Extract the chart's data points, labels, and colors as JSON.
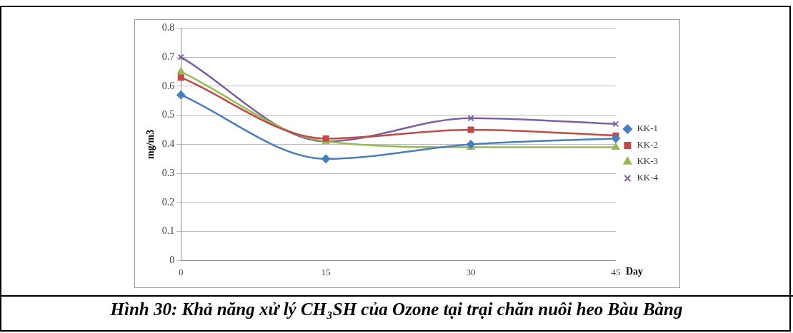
{
  "chart_data": {
    "type": "line",
    "title": "Hình 30: Khả năng xử lý CH₃SH của Ozone tại trại chăn nuôi heo Bàu Bàng",
    "xlabel": "Day",
    "ylabel": "mg/m3",
    "categories": [
      "0",
      "15",
      "30",
      "45"
    ],
    "series": [
      {
        "name": "KK-1",
        "color": "#4a7ebb",
        "marker": "diamond",
        "values": [
          0.57,
          0.35,
          0.4,
          0.42
        ]
      },
      {
        "name": "KK-2",
        "color": "#be4b48",
        "marker": "square",
        "values": [
          0.63,
          0.42,
          0.45,
          0.43
        ]
      },
      {
        "name": "KK-3",
        "color": "#98b954",
        "marker": "triangle",
        "values": [
          0.65,
          0.41,
          0.39,
          0.39
        ]
      },
      {
        "name": "KK-4",
        "color": "#7d60a0",
        "marker": "cross",
        "values": [
          0.7,
          0.41,
          0.49,
          0.47
        ]
      }
    ],
    "ylim": [
      0,
      0.8
    ],
    "yticks": [
      0,
      0.1,
      0.2,
      0.3,
      0.4,
      0.5,
      0.6,
      0.7,
      0.8
    ],
    "grid": "y",
    "legend": "right",
    "line_style": "solid"
  }
}
